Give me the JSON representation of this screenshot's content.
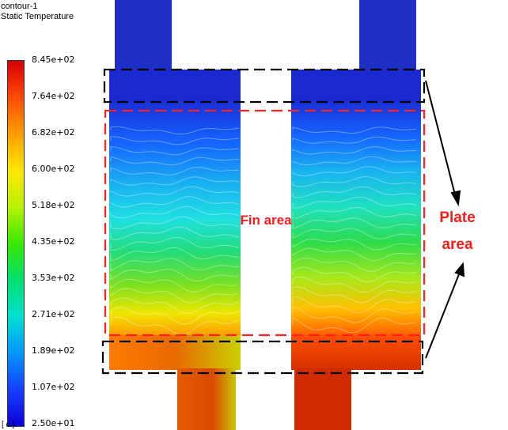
{
  "legend": {
    "title": "contour-1",
    "subtitle": "Static Temperature",
    "ticks": [
      "8.45e+02",
      "7.64e+02",
      "6.82e+02",
      "6.00e+02",
      "5.18e+02",
      "4.35e+02",
      "3.53e+02",
      "2.71e+02",
      "1.89e+02",
      "1.07e+02",
      "2.50e+01"
    ],
    "unit": "[ c ]",
    "colors": [
      "#d60000",
      "#ff4a00",
      "#ff9e00",
      "#ffe600",
      "#b8f200",
      "#38e800",
      "#00e070",
      "#00e0d0",
      "#0096ff",
      "#1640ff",
      "#0b00d6"
    ]
  },
  "annotations": {
    "fin_label": "Fin area",
    "plate_label_1": "Plate",
    "plate_label_2": "area"
  },
  "colors": {
    "fin_box": "#ff2020",
    "plate_box": "#000000",
    "annotation_text": "#ff1a1a",
    "top_pipe": "#1d2fc4",
    "bottom_pipe": "#d63000"
  }
}
